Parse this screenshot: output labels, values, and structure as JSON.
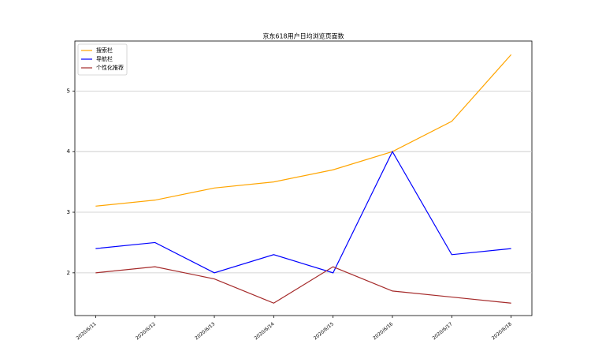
{
  "chart_data": {
    "type": "line",
    "title": "京东618用户日均浏览页面数",
    "categories": [
      "2020/6/11",
      "2020/6/12",
      "2020/6/13",
      "2020/6/14",
      "2020/6/15",
      "2020/6/16",
      "2020/6/17",
      "2020/6/18"
    ],
    "series": [
      {
        "name": "搜索栏",
        "color": "#ffa500",
        "values": [
          3.1,
          3.2,
          3.4,
          3.5,
          3.7,
          4.0,
          4.5,
          5.6
        ]
      },
      {
        "name": "导航栏",
        "color": "#0000ff",
        "values": [
          2.4,
          2.5,
          2.0,
          2.3,
          2.0,
          4.0,
          2.3,
          2.4
        ]
      },
      {
        "name": "个性化推荐",
        "color": "#a52a2a",
        "values": [
          2.0,
          2.1,
          1.9,
          1.5,
          2.1,
          1.7,
          1.6,
          1.5
        ]
      }
    ],
    "ylim": [
      1.295,
      5.825
    ],
    "yticks": [
      2,
      3,
      4,
      5
    ],
    "grid": true,
    "legend": "upper-left"
  }
}
